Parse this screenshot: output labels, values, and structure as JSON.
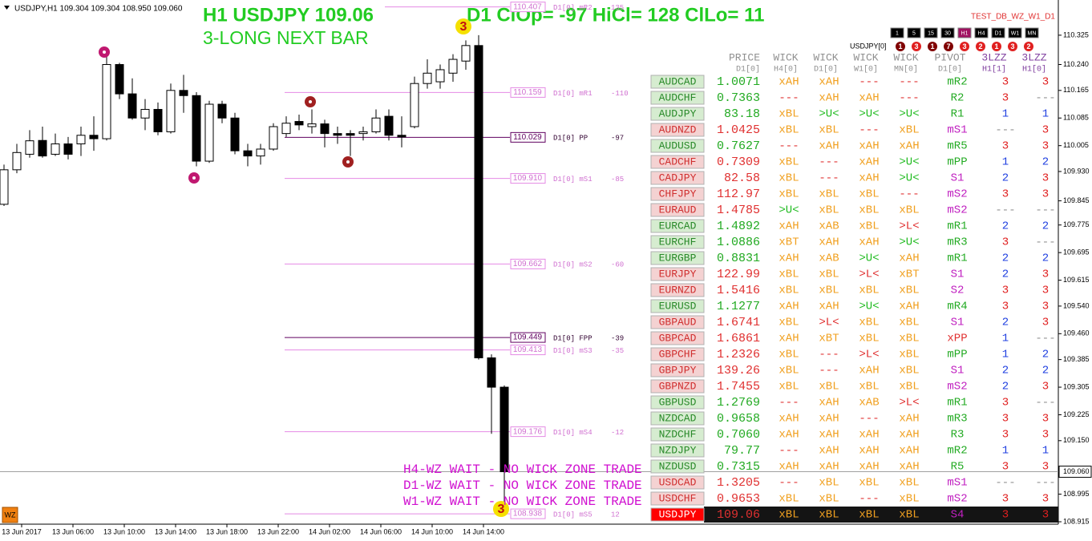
{
  "header": {
    "symbol_info": "USDJPY,H1  109.304 109.304 108.950 109.060",
    "title": "H1 USDJPY 109.06",
    "signal": "3-LONG NEXT BAR",
    "stats": "D1 ClOp= -97 HiCl= 128 ClLo= 11",
    "indicator": "TEST_DB_WZ_W1_D1"
  },
  "timeframes": [
    "1",
    "5",
    "15",
    "30",
    "H1",
    "H4",
    "D1",
    "W1",
    "MN"
  ],
  "active_timeframe": "H1",
  "status": {
    "label": "USDJPY[0]",
    "counts": [
      "1",
      "3",
      "1",
      "7",
      "3",
      "2",
      "1",
      "3",
      "2"
    ]
  },
  "price_axis": {
    "ylim": [
      108.908,
      110.427
    ],
    "ticks": [
      {
        "value": 110.325,
        "label": "110.325"
      },
      {
        "value": 110.24,
        "label": "110.240"
      },
      {
        "value": 110.165,
        "label": "110.165"
      },
      {
        "value": 110.085,
        "label": "110.085"
      },
      {
        "value": 110.005,
        "label": "110.005"
      },
      {
        "value": 109.93,
        "label": "109.930"
      },
      {
        "value": 109.845,
        "label": "109.845"
      },
      {
        "value": 109.775,
        "label": "109.775"
      },
      {
        "value": 109.695,
        "label": "109.695"
      },
      {
        "value": 109.615,
        "label": "109.615"
      },
      {
        "value": 109.54,
        "label": "109.540"
      },
      {
        "value": 109.46,
        "label": "109.460"
      },
      {
        "value": 109.385,
        "label": "109.385"
      },
      {
        "value": 109.305,
        "label": "109.305"
      },
      {
        "value": 109.225,
        "label": "109.225"
      },
      {
        "value": 109.15,
        "label": "109.150"
      },
      {
        "value": 108.995,
        "label": "108.995"
      },
      {
        "value": 108.915,
        "label": "108.915"
      }
    ],
    "current": {
      "value": 109.06,
      "label": "109.060"
    }
  },
  "time_axis": [
    "13 Jun 2017",
    "13 Jun 06:00",
    "13 Jun 10:00",
    "13 Jun 14:00",
    "13 Jun 18:00",
    "13 Jun 22:00",
    "14 Jun 02:00",
    "14 Jun 06:00",
    "14 Jun 10:00",
    "14 Jun 14:00"
  ],
  "candles": [
    [
      109.835,
      109.95,
      109.83,
      109.935
    ],
    [
      109.935,
      110.01,
      109.925,
      109.985
    ],
    [
      109.98,
      110.05,
      109.97,
      110.019
    ],
    [
      110.02,
      110.06,
      109.97,
      109.975
    ],
    [
      109.98,
      110.04,
      109.975,
      110.01
    ],
    [
      110.01,
      110.03,
      109.965,
      109.98
    ],
    [
      110.01,
      110.06,
      109.975,
      110.035
    ],
    [
      110.035,
      110.09,
      109.99,
      110.025
    ],
    [
      110.025,
      110.27,
      110.02,
      110.24
    ],
    [
      110.24,
      110.245,
      110.14,
      110.155
    ],
    [
      110.155,
      110.2,
      110.08,
      110.085
    ],
    [
      110.085,
      110.14,
      110.05,
      110.11
    ],
    [
      110.11,
      110.13,
      110.035,
      110.045
    ],
    [
      110.045,
      110.185,
      110.04,
      110.165
    ],
    [
      110.165,
      110.21,
      110.1,
      110.15
    ],
    [
      110.15,
      110.16,
      109.945,
      109.96
    ],
    [
      109.96,
      110.135,
      109.955,
      110.125
    ],
    [
      110.125,
      110.135,
      110.07,
      110.085
    ],
    [
      110.085,
      110.1,
      109.98,
      109.99
    ],
    [
      109.99,
      110.01,
      109.945,
      109.975
    ],
    [
      109.975,
      110.01,
      109.95,
      109.995
    ],
    [
      109.995,
      110.07,
      109.99,
      110.06
    ],
    [
      110.04,
      110.09,
      110.03,
      110.07
    ],
    [
      110.075,
      110.095,
      110.05,
      110.065
    ],
    [
      110.06,
      110.11,
      110.04,
      110.068
    ],
    [
      110.068,
      110.08,
      110.0,
      110.04
    ],
    [
      110.04,
      110.06,
      110.01,
      110.035
    ],
    [
      110.04,
      110.05,
      109.975,
      110.035
    ],
    [
      110.04,
      110.06,
      110.02,
      110.045
    ],
    [
      110.045,
      110.11,
      110.04,
      110.085
    ],
    [
      110.09,
      110.11,
      110.02,
      110.035
    ],
    [
      110.035,
      110.09,
      110.0,
      110.03
    ],
    [
      110.06,
      110.205,
      110.055,
      110.185
    ],
    [
      110.185,
      110.255,
      110.17,
      110.215
    ],
    [
      110.19,
      110.24,
      110.17,
      110.225
    ],
    [
      110.215,
      110.27,
      110.19,
      110.255
    ],
    [
      110.25,
      110.31,
      110.225,
      110.295
    ],
    [
      110.295,
      110.325,
      109.385,
      109.39
    ],
    [
      109.39,
      109.4,
      109.17,
      109.305
    ],
    [
      109.305,
      109.31,
      108.95,
      109.06
    ]
  ],
  "pivots": [
    {
      "price": 110.407,
      "name": "D1[0] mR2",
      "diff": 135
    },
    {
      "price": 110.159,
      "name": "D1[0] mR1",
      "diff": -110
    },
    {
      "price": 110.029,
      "name": "D1[0] PP",
      "diff": -97
    },
    {
      "price": {
        "value": 109.91,
        "label": "109.910"
      },
      "name": "D1[0] mS1",
      "diff": -85
    },
    {
      "price": 109.662,
      "name": "D1[0] mS2",
      "diff": -60
    },
    {
      "price": 109.449,
      "name": "D1[0] FPP",
      "diff": -39
    },
    {
      "price": 109.413,
      "name": "D1[0] mS3",
      "diff": -35
    },
    {
      "price": 109.176,
      "name": "D1[0] mS4",
      "diff": -12
    },
    {
      "price": 108.938,
      "name": "D1[0] mS5",
      "diff": 12
    }
  ],
  "messages": [
    "H4-WZ WAIT - NO WICK ZONE TRADE",
    "D1-WZ WAIT - NO WICK ZONE TRADE",
    "W1-WZ WAIT - NO WICK ZONE TRADE"
  ],
  "signal_labels": [
    "3",
    "3"
  ],
  "button": "WZ",
  "table": {
    "columns": [
      [
        "PRICE",
        "D1[0]"
      ],
      [
        "WICK",
        "H4[0]"
      ],
      [
        "WICK",
        "D1[0]"
      ],
      [
        "WICK",
        "W1[0]"
      ],
      [
        "WICK",
        "MN[0]"
      ],
      [
        "PIVOT",
        "D1[0]"
      ],
      [
        "3LZZ",
        "H1[1]"
      ],
      [
        "3LZZ",
        "H1[0]"
      ]
    ],
    "rows": [
      [
        "AUDCAD",
        "1.0071",
        "xAH",
        "xAH",
        "---",
        "---",
        "mR2",
        "3",
        "3"
      ],
      [
        "AUDCHF",
        "0.7363",
        "---",
        "xAH",
        "xAH",
        "---",
        "R2",
        "3",
        "---"
      ],
      [
        "AUDJPY",
        "83.18",
        "xBL",
        ">U<",
        ">U<",
        ">U<",
        "R1",
        "1",
        "1"
      ],
      [
        "AUDNZD",
        "1.0425",
        "xBL",
        "xBL",
        "---",
        "xBL",
        "mS1",
        "---",
        "3"
      ],
      [
        "AUDUSD",
        "0.7627",
        "---",
        "xAH",
        "xAH",
        "xAH",
        "mR5",
        "3",
        "3"
      ],
      [
        "CADCHF",
        "0.7309",
        "xBL",
        "---",
        "xAH",
        ">U<",
        "mPP",
        "1",
        "2"
      ],
      [
        "CADJPY",
        "82.58",
        "xBL",
        "---",
        "xAH",
        ">U<",
        "S1",
        "2",
        "3"
      ],
      [
        "CHFJPY",
        "112.97",
        "xBL",
        "xBL",
        "xBL",
        "---",
        "mS2",
        "3",
        "3"
      ],
      [
        "EURAUD",
        "1.4785",
        ">U<",
        "xBL",
        "xBL",
        "xBL",
        "mS2",
        "---",
        "---"
      ],
      [
        "EURCAD",
        "1.4892",
        "xAH",
        "xAB",
        "xBL",
        ">L<",
        "mR1",
        "2",
        "2"
      ],
      [
        "EURCHF",
        "1.0886",
        "xBT",
        "xAH",
        "xAH",
        ">U<",
        "mR3",
        "3",
        "---"
      ],
      [
        "EURGBP",
        "0.8831",
        "xAH",
        "xAB",
        ">U<",
        "xAH",
        "mR1",
        "2",
        "2"
      ],
      [
        "EURJPY",
        "122.99",
        "xBL",
        "xBL",
        ">L<",
        "xBT",
        "S1",
        "2",
        "3"
      ],
      [
        "EURNZD",
        "1.5416",
        "xBL",
        "xBL",
        "xBL",
        "xBL",
        "S2",
        "3",
        "3"
      ],
      [
        "EURUSD",
        "1.1277",
        "xAH",
        "xAH",
        ">U<",
        "xAH",
        "mR4",
        "3",
        "3"
      ],
      [
        "GBPAUD",
        "1.6741",
        "xBL",
        ">L<",
        "xBL",
        "xBL",
        "S1",
        "2",
        "3"
      ],
      [
        "GBPCAD",
        "1.6861",
        "xAH",
        "xBT",
        "xBL",
        "xBL",
        "xPP",
        "1",
        "---"
      ],
      [
        "GBPCHF",
        "1.2326",
        "xBL",
        "---",
        ">L<",
        "xBL",
        "mPP",
        "1",
        "2"
      ],
      [
        "GBPJPY",
        "139.26",
        "xBL",
        "---",
        "xAH",
        "xBL",
        "S1",
        "2",
        "2"
      ],
      [
        "GBPNZD",
        "1.7455",
        "xBL",
        "xBL",
        "xBL",
        "xBL",
        "mS2",
        "2",
        "3"
      ],
      [
        "GBPUSD",
        "1.2769",
        "---",
        "xAH",
        "xAB",
        ">L<",
        "mR1",
        "3",
        "---"
      ],
      [
        "NZDCAD",
        "0.9658",
        "xAH",
        "xAH",
        "---",
        "xAH",
        "mR3",
        "3",
        "3"
      ],
      [
        "NZDCHF",
        "0.7060",
        "xAH",
        "xAH",
        "xAH",
        "xAH",
        "R3",
        "3",
        "3"
      ],
      [
        "NZDJPY",
        "79.77",
        "---",
        "xAH",
        "xAH",
        "xAH",
        "mR2",
        "1",
        "1"
      ],
      [
        "NZDUSD",
        "0.7315",
        "xAH",
        "xAH",
        "xAH",
        "xAH",
        "R5",
        "3",
        "3"
      ],
      [
        "USDCAD",
        "1.3205",
        "---",
        "xBL",
        "xBL",
        "xBL",
        "mS1",
        "---",
        "---"
      ],
      [
        "USDCHF",
        "0.9653",
        "xBL",
        "xBL",
        "---",
        "xBL",
        "mS2",
        "3",
        "3"
      ],
      [
        "USDJPY",
        "109.06",
        "xBL",
        "xBL",
        "xBL",
        "xBL",
        "S4",
        "3",
        "3"
      ]
    ],
    "row_colors": [
      "green",
      "green",
      "green",
      "red",
      "green",
      "red",
      "red",
      "red",
      "red",
      "green",
      "green",
      "green",
      "red",
      "red",
      "green",
      "red",
      "red",
      "red",
      "red",
      "red",
      "green",
      "green",
      "green",
      "green",
      "green",
      "red",
      "red",
      "red"
    ],
    "selected": "USDJPY"
  }
}
